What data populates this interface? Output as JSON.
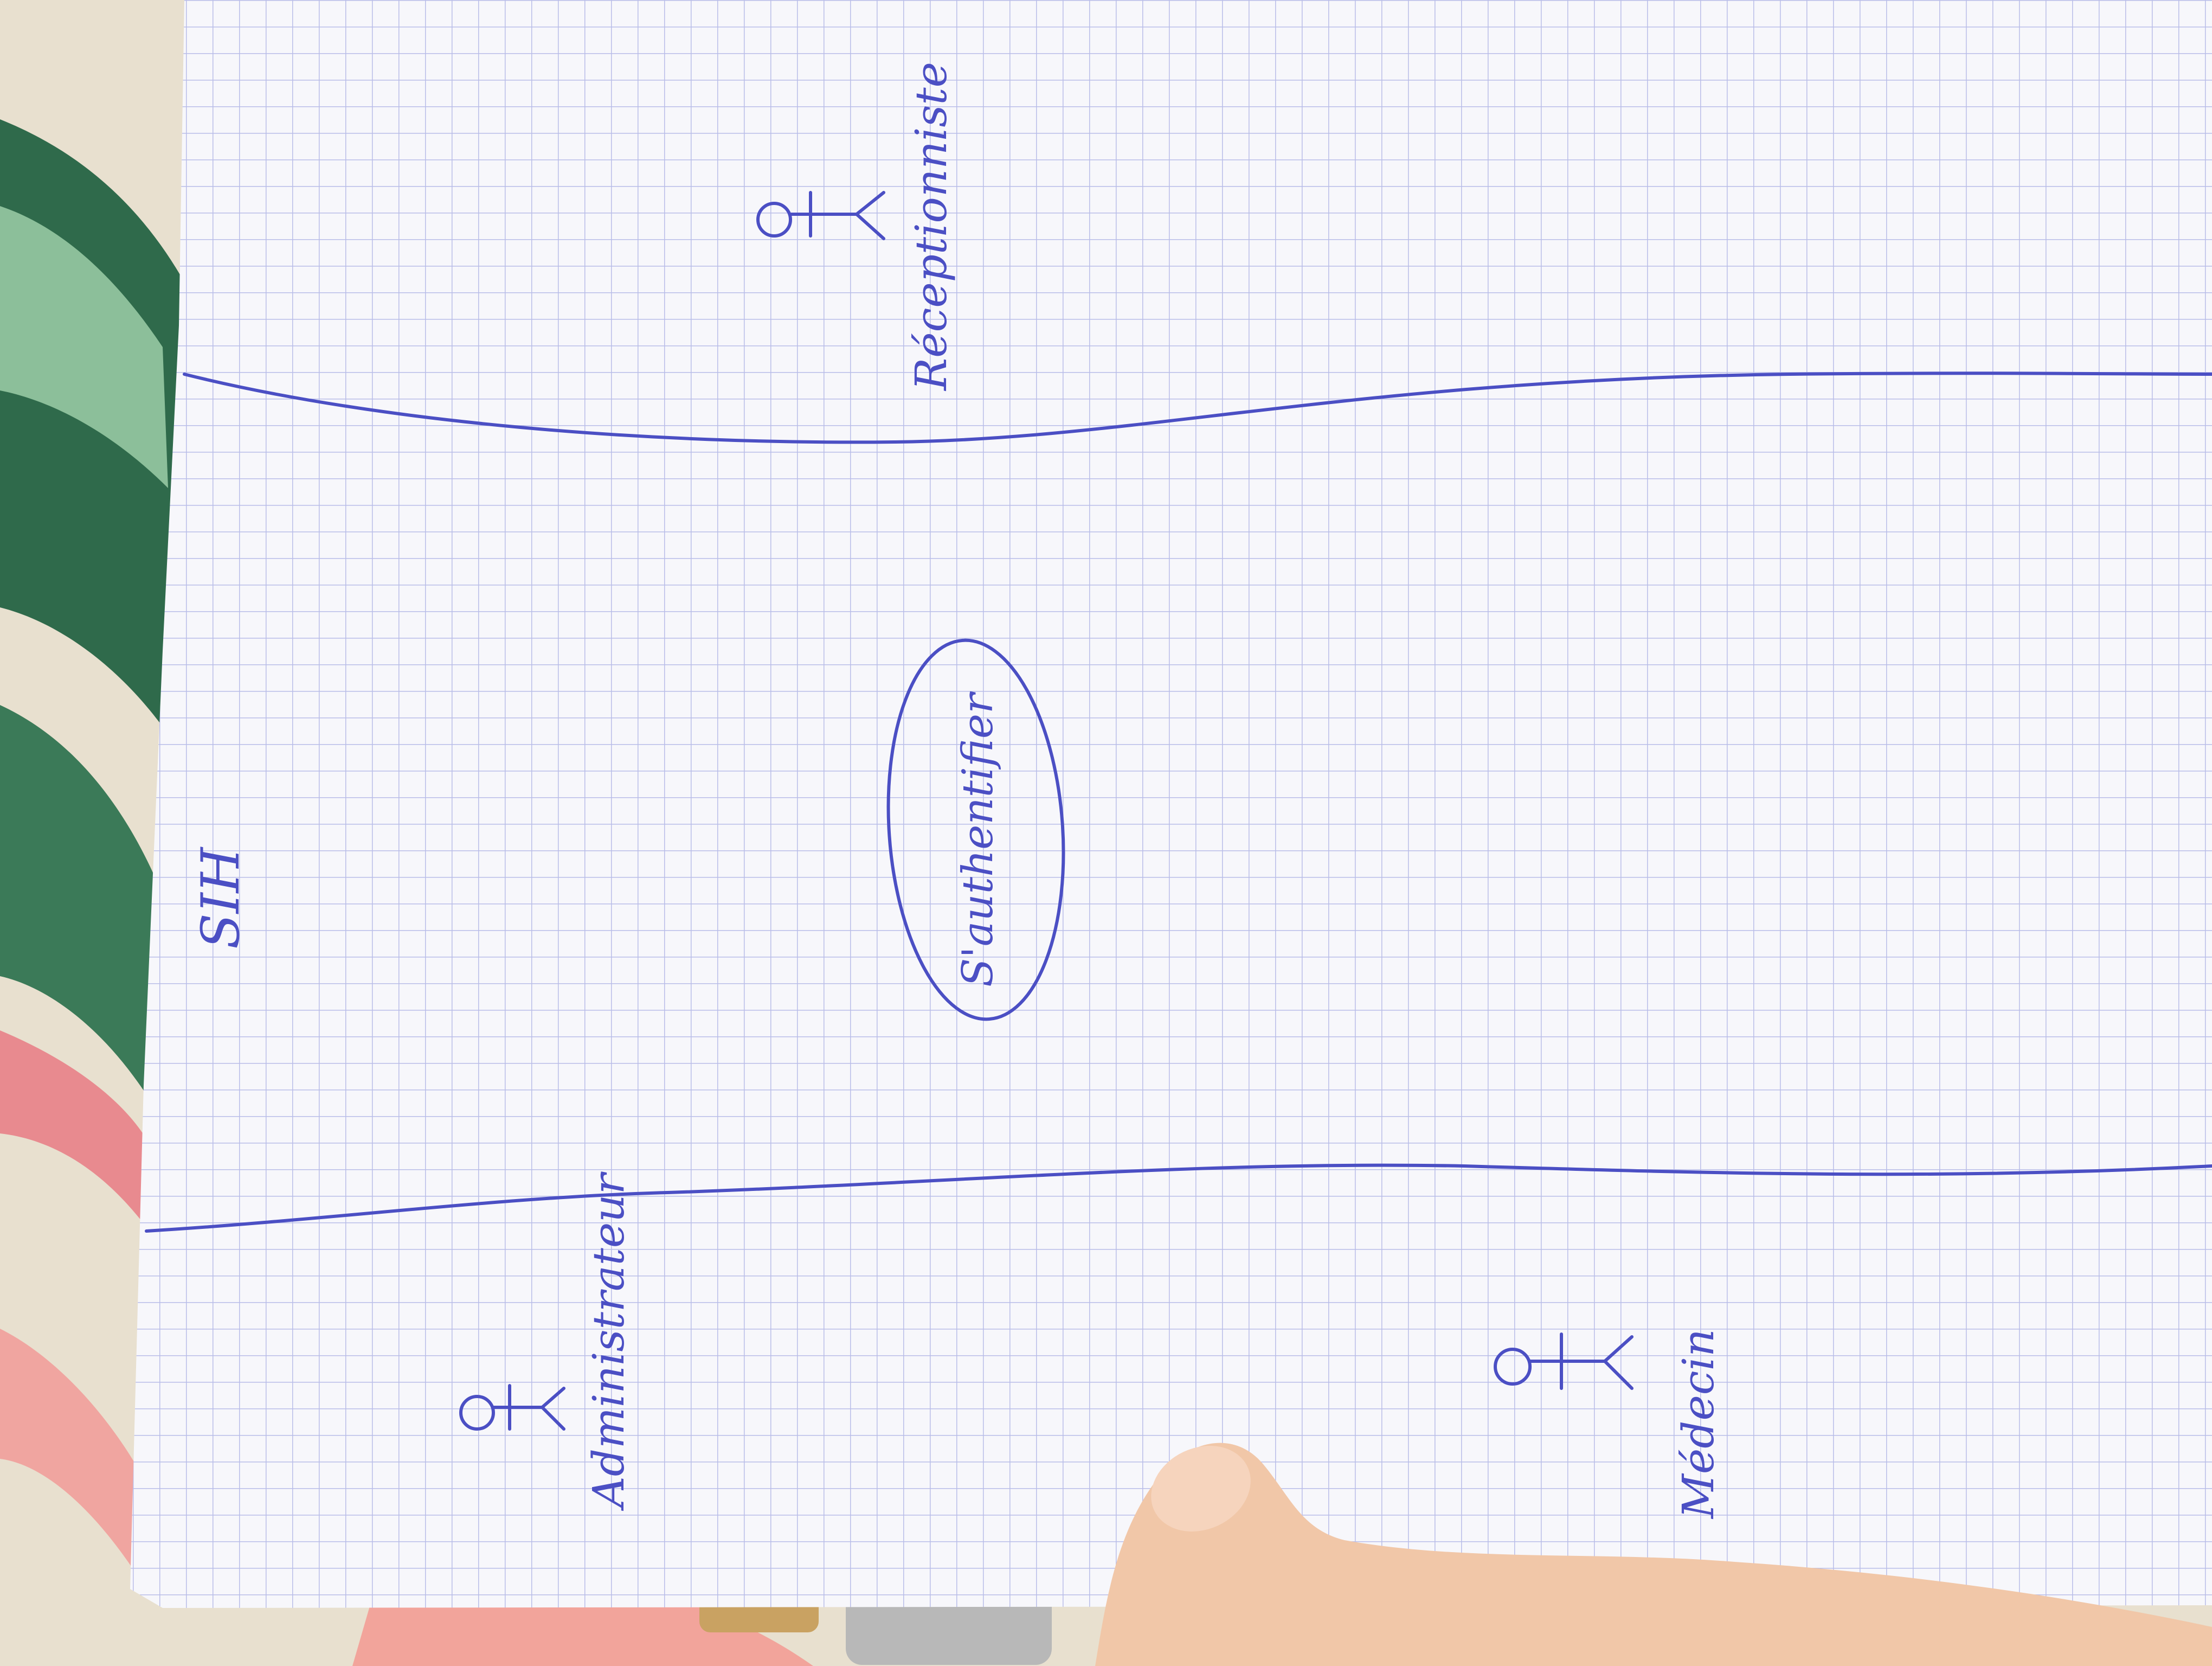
{
  "diagram": {
    "title": "SIH",
    "use_case": "S'authentifier",
    "actors": [
      {
        "label": "Administrateur"
      },
      {
        "label": "Médecin"
      },
      {
        "label": "Réceptionniste"
      }
    ]
  },
  "colors": {
    "ink": "#4b4fc4",
    "grid": "#b9bde8",
    "paper": "#f7f7fb"
  }
}
